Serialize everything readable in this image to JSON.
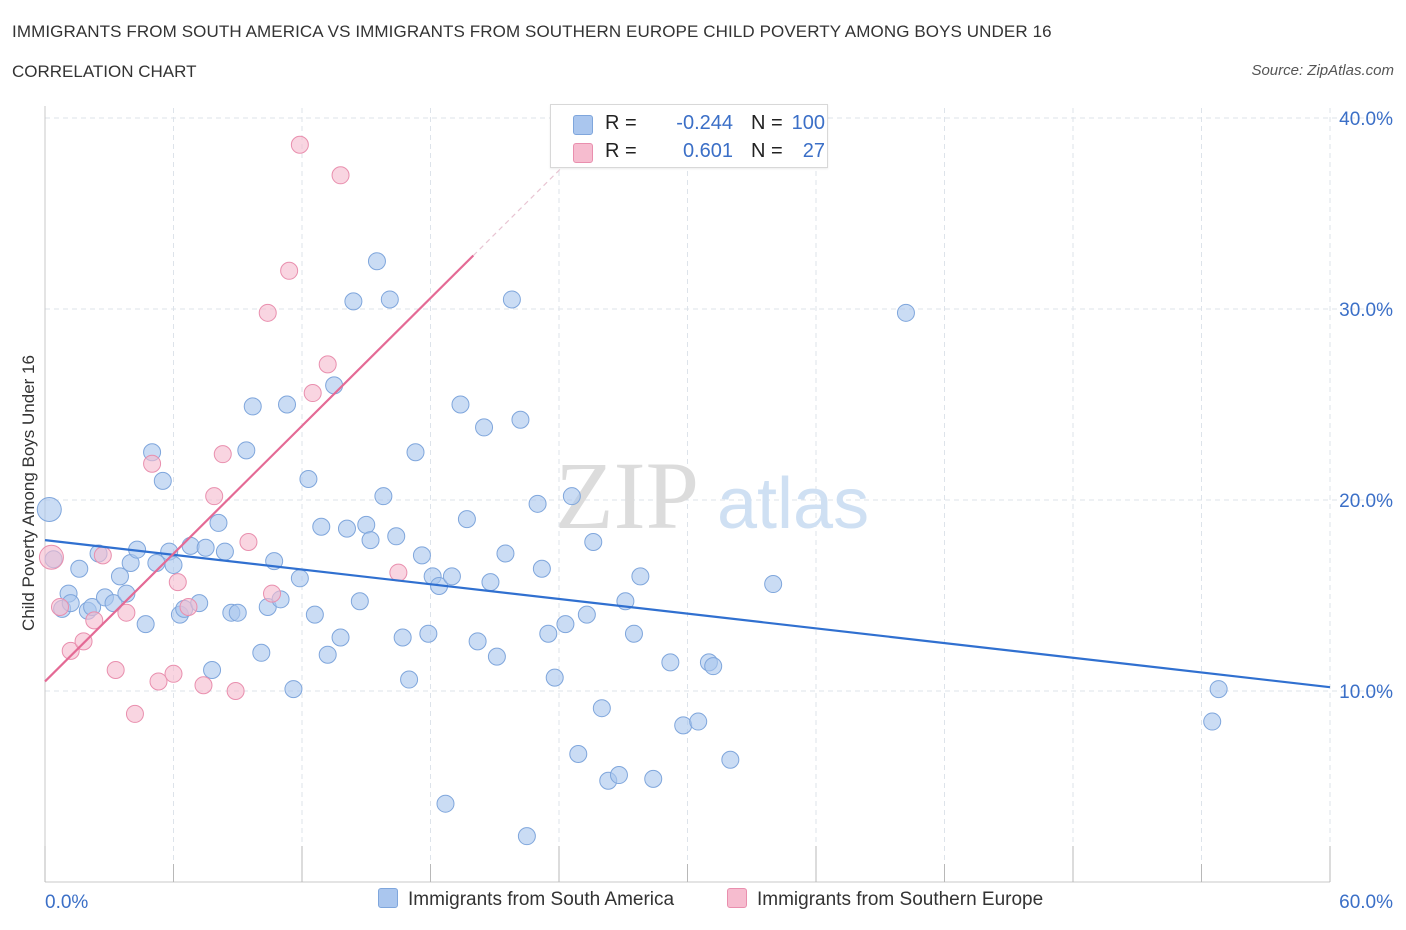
{
  "header": {
    "title": "IMMIGRANTS FROM SOUTH AMERICA VS IMMIGRANTS FROM SOUTHERN EUROPE CHILD POVERTY AMONG BOYS UNDER 16",
    "subtitle": "CORRELATION CHART",
    "source": "Source: ZipAtlas.com"
  },
  "legend": {
    "series1": {
      "r_label": "R =",
      "r_value": "-0.244",
      "n_label": "N =",
      "n_value": "100"
    },
    "series2": {
      "r_label": "R =",
      "r_value": "0.601",
      "n_label": "N =",
      "n_value": "27"
    }
  },
  "colors": {
    "blue_fill": "#aac6ee",
    "blue_stroke": "#7fa6dc",
    "blue_line": "#3070d0",
    "pink_fill": "#f6bccf",
    "pink_stroke": "#e98fae",
    "pink_line": "#e46a95",
    "tick_label": "#3b6fc7",
    "grid": "#dde3ea"
  },
  "watermark": {
    "zip": "ZIP",
    "atlas": "atlas"
  },
  "chart_data": {
    "type": "scatter",
    "title": "IMMIGRANTS FROM SOUTH AMERICA VS IMMIGRANTS FROM SOUTHERN EUROPE CHILD POVERTY AMONG BOYS UNDER 16",
    "xlabel": "",
    "ylabel": "Child Poverty Among Boys Under 16",
    "xlim": [
      0,
      60
    ],
    "ylim": [
      0,
      40
    ],
    "x_tick_labels": [
      "0.0%",
      "60.0%"
    ],
    "y_ticks": [
      10,
      20,
      30,
      40
    ],
    "y_tick_labels": [
      "10.0%",
      "20.0%",
      "30.0%",
      "40.0%"
    ],
    "grid": true,
    "legend_position": "top-center",
    "series": [
      {
        "name": "Immigrants from South America",
        "r": -0.244,
        "n": 100,
        "trend": {
          "x": [
            0,
            60
          ],
          "y": [
            17.9,
            10.2
          ]
        },
        "points": [
          [
            0.2,
            19.5
          ],
          [
            0.4,
            16.9
          ],
          [
            0.8,
            14.3
          ],
          [
            1.1,
            15.1
          ],
          [
            1.2,
            14.6
          ],
          [
            1.6,
            16.4
          ],
          [
            2.0,
            14.2
          ],
          [
            2.2,
            14.4
          ],
          [
            2.5,
            17.2
          ],
          [
            2.8,
            14.9
          ],
          [
            3.2,
            14.6
          ],
          [
            3.5,
            16.0
          ],
          [
            3.8,
            15.1
          ],
          [
            4.0,
            16.7
          ],
          [
            4.3,
            17.4
          ],
          [
            4.7,
            13.5
          ],
          [
            5.0,
            22.5
          ],
          [
            5.2,
            16.7
          ],
          [
            5.5,
            21.0
          ],
          [
            5.8,
            17.3
          ],
          [
            6.0,
            16.6
          ],
          [
            6.3,
            14.0
          ],
          [
            6.5,
            14.3
          ],
          [
            6.8,
            17.6
          ],
          [
            7.2,
            14.6
          ],
          [
            7.5,
            17.5
          ],
          [
            7.8,
            11.1
          ],
          [
            8.1,
            18.8
          ],
          [
            8.4,
            17.3
          ],
          [
            8.7,
            14.1
          ],
          [
            9.0,
            14.1
          ],
          [
            9.4,
            22.6
          ],
          [
            9.7,
            24.9
          ],
          [
            10.1,
            12.0
          ],
          [
            10.4,
            14.4
          ],
          [
            10.7,
            16.8
          ],
          [
            11.0,
            14.8
          ],
          [
            11.3,
            25.0
          ],
          [
            11.6,
            10.1
          ],
          [
            11.9,
            15.9
          ],
          [
            12.3,
            21.1
          ],
          [
            12.6,
            14.0
          ],
          [
            12.9,
            18.6
          ],
          [
            13.2,
            11.9
          ],
          [
            13.5,
            26.0
          ],
          [
            13.8,
            12.8
          ],
          [
            14.1,
            18.5
          ],
          [
            14.4,
            30.4
          ],
          [
            14.7,
            14.7
          ],
          [
            15.0,
            18.7
          ],
          [
            15.2,
            17.9
          ],
          [
            15.5,
            32.5
          ],
          [
            15.8,
            20.2
          ],
          [
            16.1,
            30.5
          ],
          [
            16.4,
            18.1
          ],
          [
            16.7,
            12.8
          ],
          [
            17.0,
            10.6
          ],
          [
            17.3,
            22.5
          ],
          [
            17.6,
            17.1
          ],
          [
            17.9,
            13.0
          ],
          [
            18.1,
            16.0
          ],
          [
            18.4,
            15.5
          ],
          [
            18.7,
            4.1
          ],
          [
            19.0,
            16.0
          ],
          [
            19.4,
            25.0
          ],
          [
            19.7,
            19.0
          ],
          [
            20.2,
            12.6
          ],
          [
            20.5,
            23.8
          ],
          [
            20.8,
            15.7
          ],
          [
            21.1,
            11.8
          ],
          [
            21.5,
            17.2
          ],
          [
            21.8,
            30.5
          ],
          [
            22.2,
            24.2
          ],
          [
            22.5,
            2.4
          ],
          [
            23.0,
            19.8
          ],
          [
            23.2,
            16.4
          ],
          [
            23.5,
            13.0
          ],
          [
            23.8,
            10.7
          ],
          [
            24.3,
            13.5
          ],
          [
            24.6,
            20.2
          ],
          [
            24.9,
            6.7
          ],
          [
            25.3,
            14.0
          ],
          [
            25.6,
            17.8
          ],
          [
            26.0,
            9.1
          ],
          [
            26.3,
            5.3
          ],
          [
            26.8,
            5.6
          ],
          [
            27.1,
            14.7
          ],
          [
            27.5,
            13.0
          ],
          [
            27.8,
            16.0
          ],
          [
            28.4,
            5.4
          ],
          [
            29.2,
            11.5
          ],
          [
            29.8,
            8.2
          ],
          [
            30.5,
            8.4
          ],
          [
            31.0,
            11.5
          ],
          [
            31.2,
            11.3
          ],
          [
            32.0,
            6.4
          ],
          [
            34.0,
            15.6
          ],
          [
            40.2,
            29.8
          ],
          [
            54.5,
            8.4
          ],
          [
            54.8,
            10.1
          ]
        ]
      },
      {
        "name": "Immigrants from Southern Europe",
        "r": 0.601,
        "n": 27,
        "trend": {
          "x": [
            0,
            20
          ],
          "y": [
            10.5,
            32.8
          ]
        },
        "points": [
          [
            0.3,
            17.0
          ],
          [
            0.7,
            14.4
          ],
          [
            1.2,
            12.1
          ],
          [
            1.8,
            12.6
          ],
          [
            2.3,
            13.7
          ],
          [
            2.7,
            17.1
          ],
          [
            3.3,
            11.1
          ],
          [
            3.8,
            14.1
          ],
          [
            4.2,
            8.8
          ],
          [
            5.0,
            21.9
          ],
          [
            5.3,
            10.5
          ],
          [
            6.0,
            10.9
          ],
          [
            6.2,
            15.7
          ],
          [
            6.7,
            14.4
          ],
          [
            7.4,
            10.3
          ],
          [
            7.9,
            20.2
          ],
          [
            8.3,
            22.4
          ],
          [
            8.9,
            10.0
          ],
          [
            9.5,
            17.8
          ],
          [
            10.4,
            29.8
          ],
          [
            10.6,
            15.1
          ],
          [
            11.4,
            32.0
          ],
          [
            11.9,
            38.6
          ],
          [
            12.5,
            25.6
          ],
          [
            13.2,
            27.1
          ],
          [
            13.8,
            37.0
          ],
          [
            16.5,
            16.2
          ]
        ]
      }
    ]
  }
}
